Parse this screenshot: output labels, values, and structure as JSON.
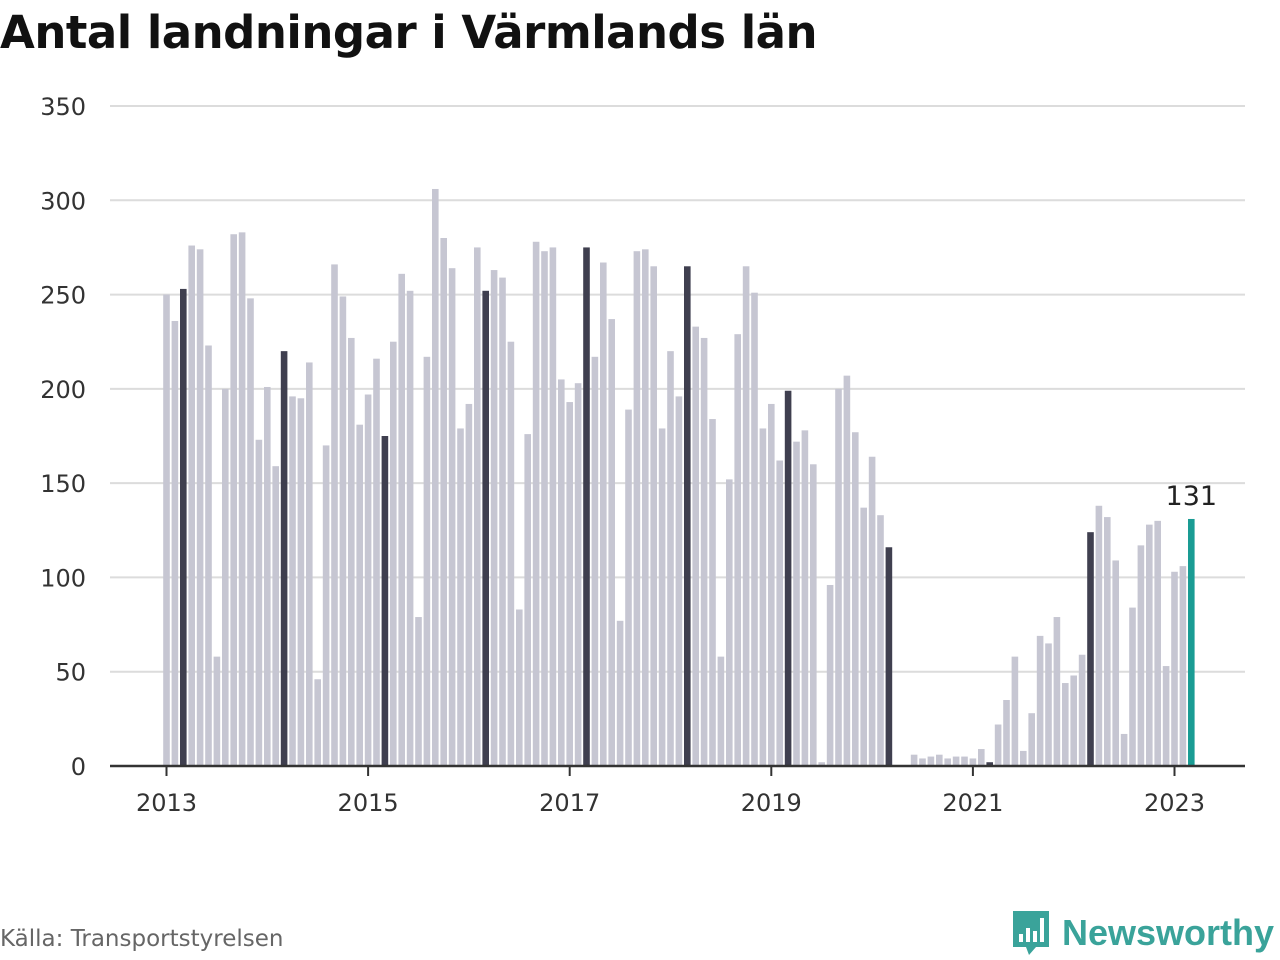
{
  "title": "Antal landningar i Värmlands län",
  "source": "Källa: Transportstyrelsen",
  "brand": {
    "name": "Newsworthy",
    "icon": "newsworthy-logo-icon",
    "color": "#3aa39a"
  },
  "colors": {
    "bar": "#c6c6d2",
    "highlight": "#3f3f4f",
    "latest": "#1a9c94",
    "grid": "#dcdcdc",
    "axis": "#333333"
  },
  "chart_data": {
    "type": "bar",
    "title": "Antal landningar i Värmlands län",
    "xlabel": "",
    "ylabel": "",
    "ylim": [
      0,
      350
    ],
    "yticks": [
      0,
      50,
      100,
      150,
      200,
      250,
      300,
      350
    ],
    "xticks": [
      "2013",
      "2015",
      "2017",
      "2019",
      "2021",
      "2023"
    ],
    "grid": true,
    "start": "2013-01",
    "highlight_month": "March",
    "annotation": {
      "month": "2023-03",
      "text": "131"
    },
    "values": [
      250,
      236,
      253,
      276,
      274,
      223,
      58,
      200,
      282,
      283,
      248,
      173,
      201,
      159,
      220,
      196,
      195,
      214,
      46,
      170,
      266,
      249,
      227,
      181,
      197,
      216,
      175,
      225,
      261,
      252,
      79,
      217,
      306,
      280,
      264,
      179,
      192,
      275,
      252,
      263,
      259,
      225,
      83,
      176,
      278,
      273,
      275,
      205,
      193,
      203,
      275,
      217,
      267,
      237,
      77,
      189,
      273,
      274,
      265,
      179,
      220,
      196,
      265,
      233,
      227,
      184,
      58,
      152,
      229,
      265,
      251,
      179,
      192,
      162,
      199,
      172,
      178,
      160,
      2,
      96,
      200,
      207,
      177,
      137,
      164,
      133,
      116,
      0,
      0,
      6,
      4,
      5,
      6,
      4,
      5,
      5,
      4,
      9,
      2,
      22,
      35,
      58,
      8,
      28,
      69,
      65,
      79,
      44,
      48,
      59,
      124,
      138,
      132,
      109,
      17,
      84,
      117,
      128,
      130,
      53,
      103,
      106,
      131
    ]
  }
}
